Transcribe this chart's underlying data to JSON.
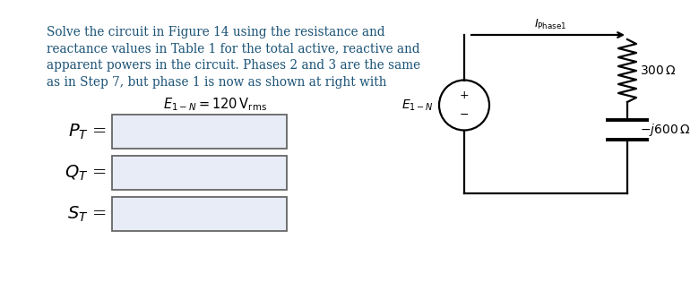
{
  "bg_color": "#ffffff",
  "text_color": "#1a5276",
  "text_lines": [
    "Solve the circuit in Figure 14 using the resistance and",
    "reactance values in Table 1 for the total active, reactive and",
    "apparent powers in the circuit. Phases 2 and 3 are the same",
    "as in Step 7, but phase 1 is now as shown at right with"
  ],
  "equation_text": "$E_{1-N} = 120\\,\\mathrm{V_{rms}}$",
  "box_fill": "#e8ecf7",
  "box_edge": "#666666",
  "box_labels": [
    "$P_T$",
    "$Q_T$",
    "$S_T$"
  ],
  "resistor_label": "$300\\,\\Omega$",
  "capacitor_label": "$-j600\\,\\Omega$",
  "source_label": "$E_{1-N}$",
  "current_label": "$I_{\\rm Phase1}$",
  "circuit_line_color": "#000000"
}
